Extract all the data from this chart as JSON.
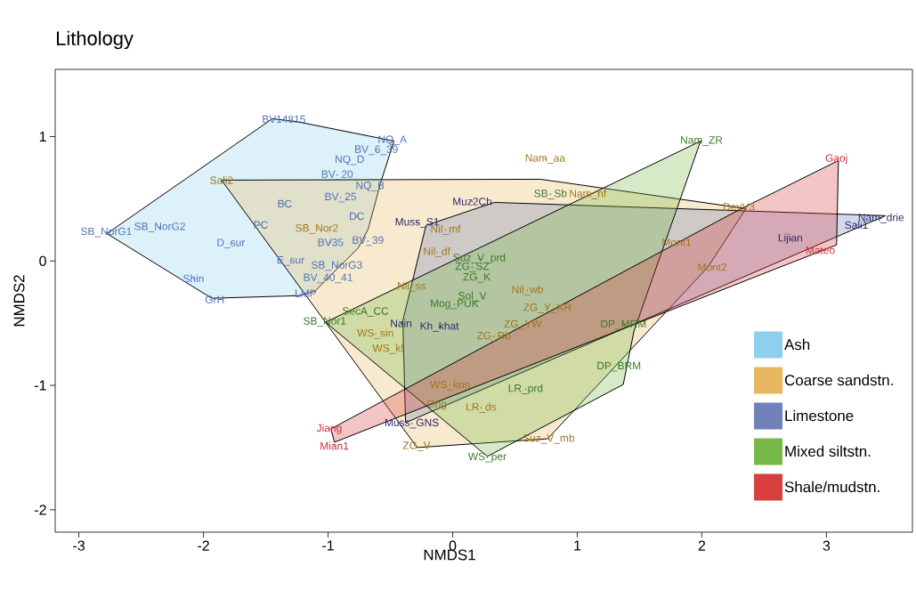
{
  "chart_data": {
    "type": "scatter",
    "title": "Lithology",
    "xlabel": "NMDS1",
    "ylabel": "NMDS2",
    "xlim": [
      -3.19,
      3.69
    ],
    "ylim": [
      -2.18,
      1.54
    ],
    "xticks": [
      -3,
      -2,
      -1,
      0,
      1,
      2,
      3
    ],
    "yticks": [
      -2,
      -1,
      0,
      1
    ],
    "legend": "bottom right",
    "series": [
      {
        "type": "area",
        "name": "Ash",
        "color": "#8ecff0",
        "x": [
          -2.775,
          -1.448,
          -1.255,
          -0.471,
          -0.578,
          -0.678,
          -0.756,
          -1.106,
          -1.234,
          -1.933
        ],
        "values": [
          0.22,
          1.143,
          1.121,
          0.964,
          0.629,
          0.257,
          0.107,
          -0.243,
          -0.279,
          -0.3
        ]
      },
      {
        "type": "area",
        "name": "Coarse sandstn.",
        "color": "#e8b860",
        "x": [
          -1.855,
          0.706,
          2.354,
          2.047,
          0.763,
          -0.285
        ],
        "values": [
          0.65,
          0.657,
          0.421,
          -0.05,
          -1.429,
          -1.5
        ]
      },
      {
        "type": "area",
        "name": "Limestone",
        "color": "#7080b8",
        "x": [
          -0.214,
          0.335,
          3.474,
          -0.378,
          -0.4
        ],
        "values": [
          0.286,
          0.471,
          0.364,
          -1.3,
          -0.48
        ]
      },
      {
        "type": "area",
        "name": "Mixed siltstn.",
        "color": "#78b848",
        "x": [
          -1.02,
          1.99,
          1.455,
          1.369,
          0.278
        ],
        "values": [
          -0.493,
          0.964,
          -0.564,
          -0.993,
          -1.571
        ]
      },
      {
        "type": "area",
        "name": "Shale/mudstn.",
        "color": "#d84040",
        "x": [
          -0.977,
          2.29,
          3.096,
          3.081,
          -0.949
        ],
        "values": [
          -1.35,
          0.407,
          0.807,
          0.129,
          -1.457
        ]
      },
      {
        "color": "#4f72b8",
        "x": [
          -1.355,
          -0.485,
          -0.613,
          -0.827,
          -0.927,
          -0.663,
          -1.348,
          -0.77,
          -1.54,
          -2.78,
          -2.35,
          -1.78,
          -1.3,
          -1.0,
          -1.18,
          -2.08,
          -1.91,
          -0.93,
          -0.9,
          -0.98,
          -0.68
        ],
        "values": [
          1.14,
          0.97,
          0.89,
          0.81,
          0.69,
          0.6,
          0.46,
          0.36,
          0.29,
          0.23,
          0.27,
          0.14,
          0.0,
          -0.14,
          -0.26,
          -0.14,
          -0.31,
          -0.04,
          0.51,
          0.15,
          0.16
        ]
      },
      {
        "color": "#a0751a",
        "x": [
          -1.855,
          -1.09,
          0.742,
          1.084,
          2.297,
          1.797,
          2.083,
          -0.057,
          -0.128,
          -0.33,
          0.6,
          -0.62,
          -0.52,
          -0.02,
          0.33,
          0.563,
          0.76,
          -0.128,
          0.228,
          0.77,
          -0.29
        ],
        "values": [
          0.65,
          0.257,
          0.82,
          0.535,
          0.436,
          0.15,
          -0.05,
          0.25,
          0.07,
          -0.207,
          -0.236,
          -0.586,
          -0.707,
          -1.0,
          -0.607,
          -0.514,
          -0.38,
          -1.157,
          -1.18,
          -1.43,
          -1.49
        ]
      },
      {
        "color": "#2e2a6e",
        "x": [
          -0.285,
          0.157,
          2.71,
          3.438,
          3.24,
          -0.414,
          -0.107,
          -0.328
        ],
        "values": [
          0.307,
          0.479,
          0.179,
          0.343,
          0.29,
          -0.5,
          -0.529,
          -1.307
        ]
      },
      {
        "color": "#3a7a28",
        "x": [
          1.997,
          0.785,
          0.214,
          0.157,
          0.193,
          0.157,
          0.014,
          -0.7,
          -1.027,
          1.37,
          1.334,
          0.585,
          0.278
        ],
        "values": [
          0.964,
          0.536,
          0.02,
          -0.05,
          -0.136,
          -0.286,
          -0.35,
          -0.41,
          -0.49,
          -0.514,
          -0.85,
          -1.03,
          -1.58
        ]
      },
      {
        "color": "#d0303a",
        "x": [
          3.08,
          2.95,
          -0.99,
          -0.95
        ],
        "values": [
          0.82,
          0.086,
          -1.35,
          -1.486
        ]
      }
    ],
    "annotations": [
      {
        "text": "BV14815",
        "x": -1.355,
        "y": 1.14
      },
      {
        "text": "NQ_A",
        "x": -0.485,
        "y": 0.97
      },
      {
        "text": "BV_6_39",
        "x": -0.613,
        "y": 0.89
      },
      {
        "text": "NQ_D",
        "x": -0.827,
        "y": 0.81
      },
      {
        "text": "BV_20",
        "x": -0.927,
        "y": 0.69
      },
      {
        "text": "NQ_B",
        "x": -0.663,
        "y": 0.6
      },
      {
        "text": "BC",
        "x": -1.348,
        "y": 0.46
      },
      {
        "text": "DC",
        "x": -0.77,
        "y": 0.36
      },
      {
        "text": "PC",
        "x": -1.54,
        "y": 0.29
      },
      {
        "text": "SB_NorG1",
        "x": -2.78,
        "y": 0.23
      },
      {
        "text": "SB_NorG2",
        "x": -2.35,
        "y": 0.27
      },
      {
        "text": "D_sur",
        "x": -1.78,
        "y": 0.14
      },
      {
        "text": "E_sur",
        "x": -1.3,
        "y": 0.0
      },
      {
        "text": "BV_40_41",
        "x": -1.0,
        "y": -0.14
      },
      {
        "text": "LMP",
        "x": -1.18,
        "y": -0.26
      },
      {
        "text": "Shin",
        "x": -2.08,
        "y": -0.14
      },
      {
        "text": "GrH",
        "x": -1.91,
        "y": -0.31
      },
      {
        "text": "SB_NorG3",
        "x": -0.93,
        "y": -0.04
      },
      {
        "text": "BV_25",
        "x": -0.9,
        "y": 0.51
      },
      {
        "text": "BV35",
        "x": -0.98,
        "y": 0.15
      },
      {
        "text": "BV_39",
        "x": -0.68,
        "y": 0.16
      },
      {
        "text": "Sali2",
        "x": -1.855,
        "y": 0.65
      },
      {
        "text": "SB_Nor2",
        "x": -1.09,
        "y": 0.257
      },
      {
        "text": "Nam_aa",
        "x": 0.742,
        "y": 0.82
      },
      {
        "text": "Nam_hf",
        "x": 1.084,
        "y": 0.535
      },
      {
        "text": "DevV3",
        "x": 2.297,
        "y": 0.436
      },
      {
        "text": "Mont1",
        "x": 1.797,
        "y": 0.15
      },
      {
        "text": "Mont2",
        "x": 2.083,
        "y": -0.05
      },
      {
        "text": "Nil_mf",
        "x": -0.057,
        "y": 0.25
      },
      {
        "text": "Nil_df",
        "x": -0.128,
        "y": 0.07
      },
      {
        "text": "Nil_ss",
        "x": -0.33,
        "y": -0.207
      },
      {
        "text": "Nil_wb",
        "x": 0.6,
        "y": -0.236
      },
      {
        "text": "WS_sin",
        "x": -0.62,
        "y": -0.586
      },
      {
        "text": "WS_kl",
        "x": -0.52,
        "y": -0.707
      },
      {
        "text": "WS_kon",
        "x": -0.02,
        "y": -1.0
      },
      {
        "text": "ZG_Rb",
        "x": 0.33,
        "y": -0.607
      },
      {
        "text": "ZG_YW",
        "x": 0.563,
        "y": -0.514
      },
      {
        "text": "ZG_Y_KR",
        "x": 0.76,
        "y": -0.38
      },
      {
        "text": "Ong",
        "x": -0.128,
        "y": -1.157
      },
      {
        "text": "LR_ds",
        "x": 0.228,
        "y": -1.18
      },
      {
        "text": "Suz_V_mb",
        "x": 0.77,
        "y": -1.43
      },
      {
        "text": "ZG_V",
        "x": -0.29,
        "y": -1.49
      },
      {
        "text": "Muss_S1",
        "x": -0.285,
        "y": 0.307
      },
      {
        "text": "Muz2Ch",
        "x": 0.157,
        "y": 0.479
      },
      {
        "text": "Lijian",
        "x": 2.71,
        "y": 0.179
      },
      {
        "text": "Nam_drie",
        "x": 3.438,
        "y": 0.343
      },
      {
        "text": "Sali1",
        "x": 3.24,
        "y": 0.29
      },
      {
        "text": "Nain",
        "x": -0.414,
        "y": -0.5
      },
      {
        "text": "Kh_khat",
        "x": -0.107,
        "y": -0.529
      },
      {
        "text": "Muss_GNS",
        "x": -0.328,
        "y": -1.307
      },
      {
        "text": "Nam_ZR",
        "x": 1.997,
        "y": 0.964
      },
      {
        "text": "SB_Sb",
        "x": 0.785,
        "y": 0.536
      },
      {
        "text": "Suz_V_prd",
        "x": 0.214,
        "y": 0.02
      },
      {
        "text": "ZG_SZ",
        "x": 0.157,
        "y": -0.05
      },
      {
        "text": "ZG_K",
        "x": 0.193,
        "y": -0.136
      },
      {
        "text": "Sol_V",
        "x": 0.157,
        "y": -0.286
      },
      {
        "text": "Mog_PUK",
        "x": 0.014,
        "y": -0.35
      },
      {
        "text": "SecA_CC",
        "x": -0.7,
        "y": -0.41
      },
      {
        "text": "SB_Nor1",
        "x": -1.027,
        "y": -0.49
      },
      {
        "text": "DP_MRM",
        "x": 1.37,
        "y": -0.514
      },
      {
        "text": "DP_BRM",
        "x": 1.334,
        "y": -0.85
      },
      {
        "text": "LR_prd",
        "x": 0.585,
        "y": -1.03
      },
      {
        "text": "WS_per",
        "x": 0.278,
        "y": -1.58
      },
      {
        "text": "Gaoj",
        "x": 3.08,
        "y": 0.82
      },
      {
        "text": "Mateo",
        "x": 2.95,
        "y": 0.086
      },
      {
        "text": "Jiang",
        "x": -0.99,
        "y": -1.35
      },
      {
        "text": "Mian1",
        "x": -0.95,
        "y": -1.486
      }
    ]
  }
}
